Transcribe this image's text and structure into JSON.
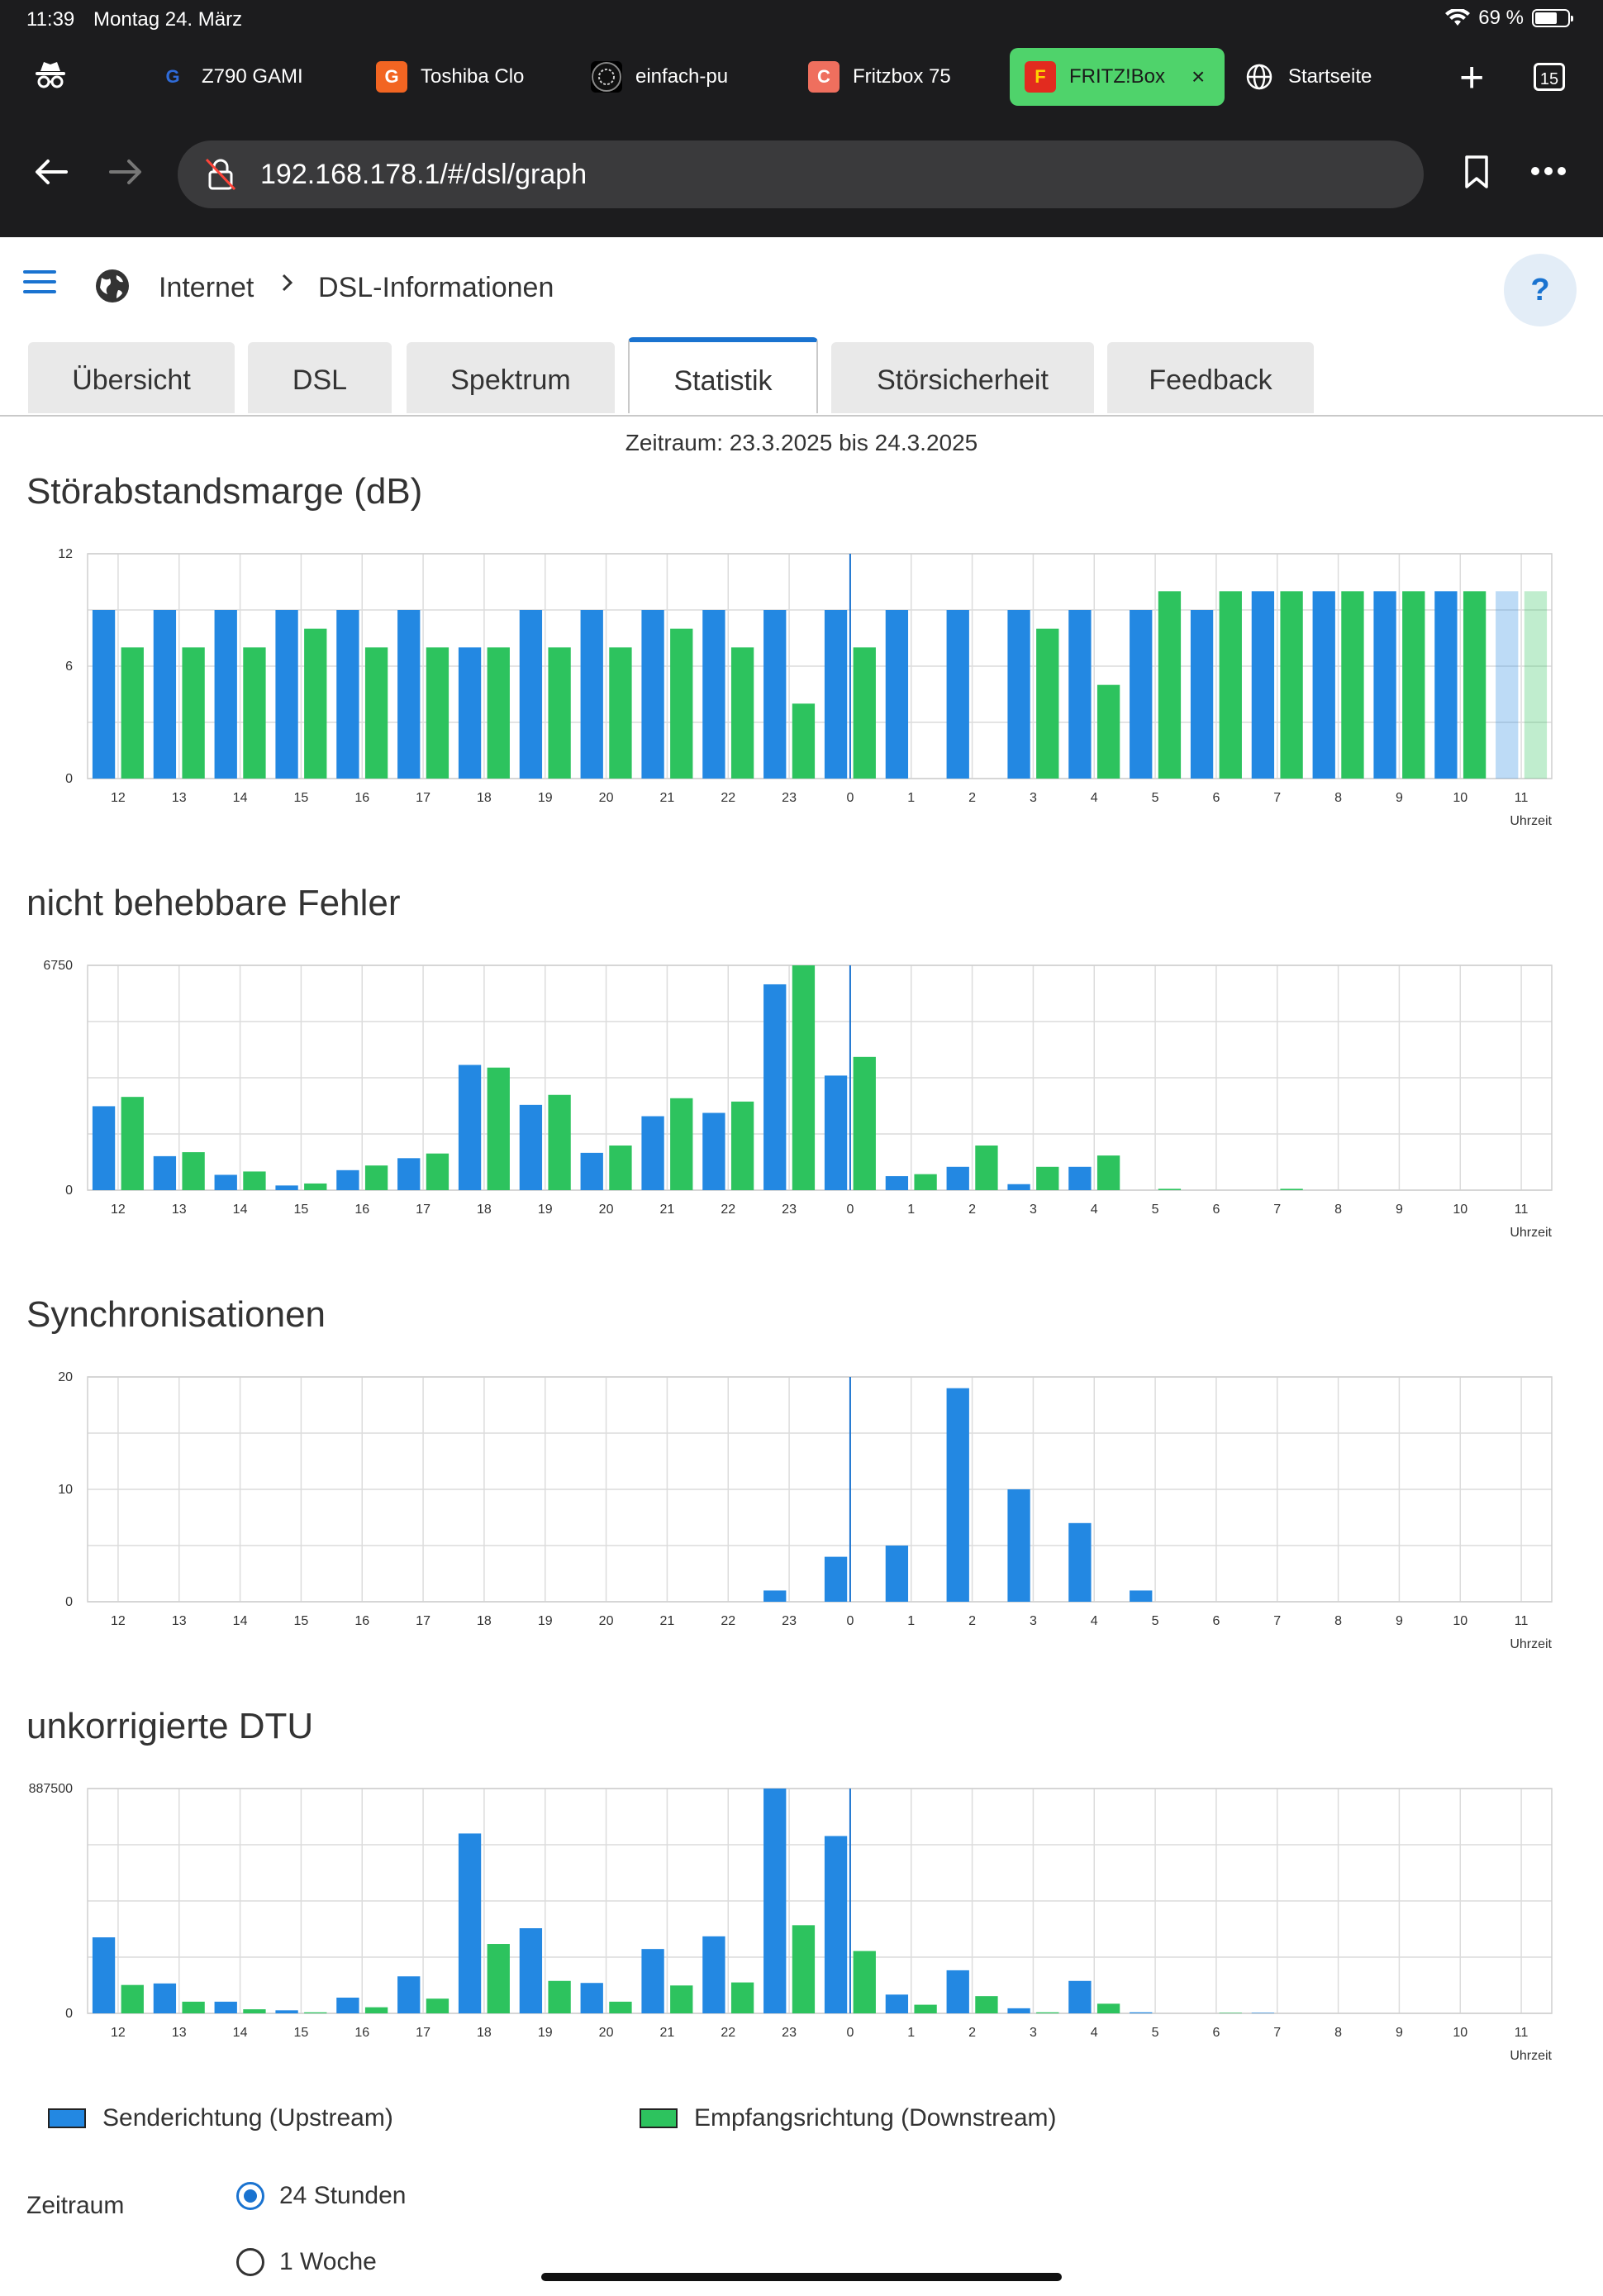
{
  "status": {
    "time": "11:39",
    "date": "Montag 24. März",
    "battery": "69 %",
    "battery_level": 0.69
  },
  "browser": {
    "tabs": [
      {
        "label": "Z790 GAMI",
        "fav": "G",
        "fav_color": "#1c1c1e",
        "fav_text_color": "#2f6bd8",
        "icon": "logitech-g-icon"
      },
      {
        "label": "Toshiba Clo",
        "fav": "G",
        "fav_color": "#f26522",
        "fav_text_color": "#ffffff",
        "icon": "g-letter-icon"
      },
      {
        "label": "einfach-pu",
        "fav": "",
        "fav_color": "#000000",
        "fav_text_color": "#ffffff",
        "icon": "pattern-icon"
      },
      {
        "label": "Fritzbox 75",
        "fav": "C",
        "fav_color": "#ef6f5e",
        "fav_text_color": "#ffffff",
        "icon": "c-letter-icon"
      },
      {
        "label": "FRITZ!Box",
        "fav": "F",
        "fav_color": "#e22b1f",
        "fav_text_color": "#ffd200",
        "icon": "fritz-icon",
        "active": true
      },
      {
        "label": "Startseite",
        "fav": "",
        "fav_color": "transparent",
        "fav_text_color": "#ffffff",
        "icon": "globe-icon"
      }
    ],
    "tab_count": "15",
    "url": "192.168.178.1/#/dsl/graph"
  },
  "breadcrumb": {
    "root": "Internet",
    "current": "DSL-Informationen"
  },
  "help_label": "?",
  "page_tabs": [
    "Übersicht",
    "DSL",
    "Spektrum",
    "Statistik",
    "Störsicherheit",
    "Feedback"
  ],
  "active_tab": "Statistik",
  "period_text": "Zeitraum: 23.3.2025 bis 24.3.2025",
  "colors": {
    "upstream": "#2388e2",
    "downstream": "#2dc35e",
    "accent": "#1a73d0",
    "grid": "#dcdcdc"
  },
  "x_axis_title": "Uhrzeit",
  "chart_data": [
    {
      "type": "bar",
      "title": "Störabstandsmarge (dB)",
      "categories": [
        "12",
        "13",
        "14",
        "15",
        "16",
        "17",
        "18",
        "19",
        "20",
        "21",
        "22",
        "23",
        "0",
        "1",
        "2",
        "3",
        "4",
        "5",
        "6",
        "7",
        "8",
        "9",
        "10",
        "11"
      ],
      "ylim": [
        0,
        12
      ],
      "yticks": [
        "0",
        "6",
        "12"
      ],
      "series": [
        {
          "name": "Senderichtung (Upstream)",
          "values": [
            9,
            9,
            9,
            9,
            9,
            9,
            7,
            9,
            9,
            9,
            9,
            9,
            9,
            9,
            9,
            9,
            9,
            9,
            9,
            10,
            10,
            10,
            10,
            10
          ]
        },
        {
          "name": "Empfangsrichtung (Downstream)",
          "values": [
            7,
            7,
            7,
            8,
            7,
            7,
            7,
            7,
            7,
            8,
            7,
            4,
            7,
            0,
            0,
            8,
            5,
            10,
            10,
            10,
            10,
            10,
            10,
            10
          ]
        }
      ],
      "partial_last": true
    },
    {
      "type": "bar",
      "title": "nicht behebbare Fehler",
      "categories": [
        "12",
        "13",
        "14",
        "15",
        "16",
        "17",
        "18",
        "19",
        "20",
        "21",
        "22",
        "23",
        "0",
        "1",
        "2",
        "3",
        "4",
        "5",
        "6",
        "7",
        "8",
        "9",
        "10",
        "11"
      ],
      "ylim": [
        0,
        6750
      ],
      "yticks": [
        "0",
        "6750"
      ],
      "series": [
        {
          "name": "Senderichtung (Upstream)",
          "values": [
            2520,
            1020,
            460,
            140,
            600,
            960,
            3760,
            2560,
            1120,
            2220,
            2320,
            6180,
            3440,
            420,
            700,
            180,
            700,
            0,
            0,
            0,
            0,
            0,
            0,
            0
          ]
        },
        {
          "name": "Empfangsrichtung (Downstream)",
          "values": [
            2800,
            1140,
            560,
            200,
            740,
            1100,
            3680,
            2860,
            1340,
            2760,
            2660,
            6750,
            4000,
            480,
            1340,
            700,
            1040,
            40,
            0,
            40,
            0,
            0,
            0,
            0
          ]
        }
      ]
    },
    {
      "type": "bar",
      "title": "Synchronisationen",
      "categories": [
        "12",
        "13",
        "14",
        "15",
        "16",
        "17",
        "18",
        "19",
        "20",
        "21",
        "22",
        "23",
        "0",
        "1",
        "2",
        "3",
        "4",
        "5",
        "6",
        "7",
        "8",
        "9",
        "10",
        "11"
      ],
      "ylim": [
        0,
        20
      ],
      "yticks": [
        "0",
        "10",
        "20"
      ],
      "series": [
        {
          "name": "Senderichtung (Upstream)",
          "values": [
            0,
            0,
            0,
            0,
            0,
            0,
            0,
            0,
            0,
            0,
            0,
            1,
            4,
            5,
            19,
            10,
            7,
            1,
            0,
            0,
            0,
            0,
            0,
            0
          ]
        },
        {
          "name": "Empfangsrichtung (Downstream)",
          "values": [
            0,
            0,
            0,
            0,
            0,
            0,
            0,
            0,
            0,
            0,
            0,
            0,
            0,
            0,
            0,
            0,
            0,
            0,
            0,
            0,
            0,
            0,
            0,
            0
          ]
        }
      ]
    },
    {
      "type": "bar",
      "title": "unkorrigierte DTU",
      "categories": [
        "12",
        "13",
        "14",
        "15",
        "16",
        "17",
        "18",
        "19",
        "20",
        "21",
        "22",
        "23",
        "0",
        "1",
        "2",
        "3",
        "4",
        "5",
        "6",
        "7",
        "8",
        "9",
        "10",
        "11"
      ],
      "ylim": [
        0,
        887500
      ],
      "yticks": [
        "0",
        "887500"
      ],
      "series": [
        {
          "name": "Senderichtung (Upstream)",
          "values": [
            300000,
            118000,
            46000,
            12000,
            62000,
            146000,
            710000,
            336000,
            120000,
            254000,
            304000,
            887500,
            700000,
            74000,
            170000,
            20000,
            128000,
            4000,
            0,
            2000,
            0,
            0,
            0,
            0
          ]
        },
        {
          "name": "Empfangsrichtung (Downstream)",
          "values": [
            112000,
            46000,
            16000,
            4000,
            24000,
            58000,
            274000,
            128000,
            46000,
            110000,
            122000,
            348000,
            246000,
            34000,
            68000,
            4000,
            38000,
            0,
            2000,
            0,
            0,
            0,
            0,
            0
          ]
        }
      ]
    }
  ],
  "legend": {
    "upstream": "Senderichtung (Upstream)",
    "downstream": "Empfangsrichtung (Downstream)"
  },
  "period": {
    "label": "Zeitraum",
    "options": [
      "24 Stunden",
      "1 Woche"
    ],
    "selected": "24 Stunden"
  }
}
